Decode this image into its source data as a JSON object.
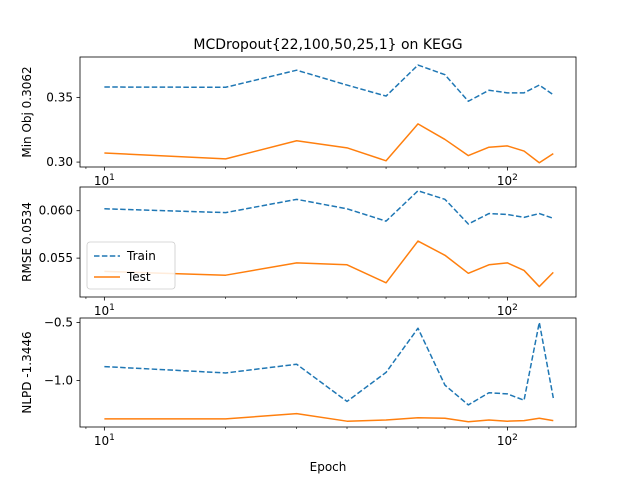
{
  "figure": {
    "title": "MCDropout{22,100,50,25,1} on KEGG",
    "xlabel": "Epoch"
  },
  "chart_data": [
    {
      "type": "line",
      "ylabel": "Min Obj 0.3062",
      "xscale": "log",
      "xlim": [
        8.7,
        148
      ],
      "ylim": [
        0.2962,
        0.3812
      ],
      "yticks": [
        0.3,
        0.35
      ],
      "ytick_labels": [
        "0.30",
        "0.35"
      ],
      "xticks": [
        10,
        100
      ],
      "xtick_labels": [
        "10^1",
        "10^2"
      ],
      "x": [
        10,
        20,
        30,
        40,
        50,
        60,
        70,
        80,
        90,
        100,
        110,
        120,
        130
      ],
      "series": [
        {
          "color": "#1f77b4",
          "dash": "dashed",
          "values": [
            0.358,
            0.3578,
            0.371,
            0.3595,
            0.351,
            0.375,
            0.3675,
            0.347,
            0.3555,
            0.3535,
            0.3535,
            0.3595,
            0.352
          ]
        },
        {
          "color": "#ff7f0e",
          "dash": "solid",
          "values": [
            0.307,
            0.3025,
            0.3165,
            0.311,
            0.301,
            0.3295,
            0.3175,
            0.305,
            0.3115,
            0.3125,
            0.3085,
            0.2995,
            0.3065
          ]
        }
      ]
    },
    {
      "type": "line",
      "ylabel": "RMSE 0.0534",
      "xscale": "log",
      "xlim": [
        8.7,
        148
      ],
      "ylim": [
        0.0509,
        0.0625
      ],
      "yticks": [
        0.055,
        0.06
      ],
      "ytick_labels": [
        "0.055",
        "0.060"
      ],
      "xticks": [
        10,
        100
      ],
      "xtick_labels": [
        "10^1",
        "10^2"
      ],
      "legend": {
        "placement": "center-left",
        "entries": [
          "Train",
          "Test"
        ]
      },
      "x": [
        10,
        20,
        30,
        40,
        50,
        60,
        70,
        80,
        90,
        100,
        110,
        120,
        130
      ],
      "series": [
        {
          "name": "Train",
          "color": "#1f77b4",
          "dash": "dashed",
          "values": [
            0.0602,
            0.0598,
            0.0612,
            0.0602,
            0.0589,
            0.0621,
            0.0612,
            0.0586,
            0.0597,
            0.0596,
            0.0593,
            0.0597,
            0.0592
          ]
        },
        {
          "name": "Test",
          "color": "#ff7f0e",
          "dash": "solid",
          "values": [
            0.0536,
            0.0532,
            0.0545,
            0.0543,
            0.0524,
            0.0568,
            0.0553,
            0.0534,
            0.0543,
            0.0545,
            0.0537,
            0.052,
            0.0535
          ]
        }
      ]
    },
    {
      "type": "line",
      "ylabel": "NLPD -1.3446",
      "xscale": "log",
      "xlim": [
        8.7,
        148
      ],
      "ylim": [
        -1.4,
        -0.462
      ],
      "yticks": [
        -1.0,
        -0.5
      ],
      "ytick_labels": [
        "−1.0",
        "−0.5"
      ],
      "xticks": [
        10,
        100
      ],
      "xtick_labels": [
        "10^1",
        "10^2"
      ],
      "x": [
        10,
        20,
        30,
        40,
        50,
        60,
        70,
        80,
        90,
        100,
        110,
        120,
        130
      ],
      "series": [
        {
          "color": "#1f77b4",
          "dash": "dashed",
          "values": [
            -0.88,
            -0.935,
            -0.86,
            -1.18,
            -0.93,
            -0.55,
            -1.04,
            -1.21,
            -1.105,
            -1.115,
            -1.17,
            -0.5,
            -1.15
          ]
        },
        {
          "color": "#ff7f0e",
          "dash": "solid",
          "values": [
            -1.33,
            -1.33,
            -1.285,
            -1.35,
            -1.34,
            -1.32,
            -1.325,
            -1.355,
            -1.34,
            -1.35,
            -1.345,
            -1.325,
            -1.345
          ]
        }
      ]
    }
  ]
}
